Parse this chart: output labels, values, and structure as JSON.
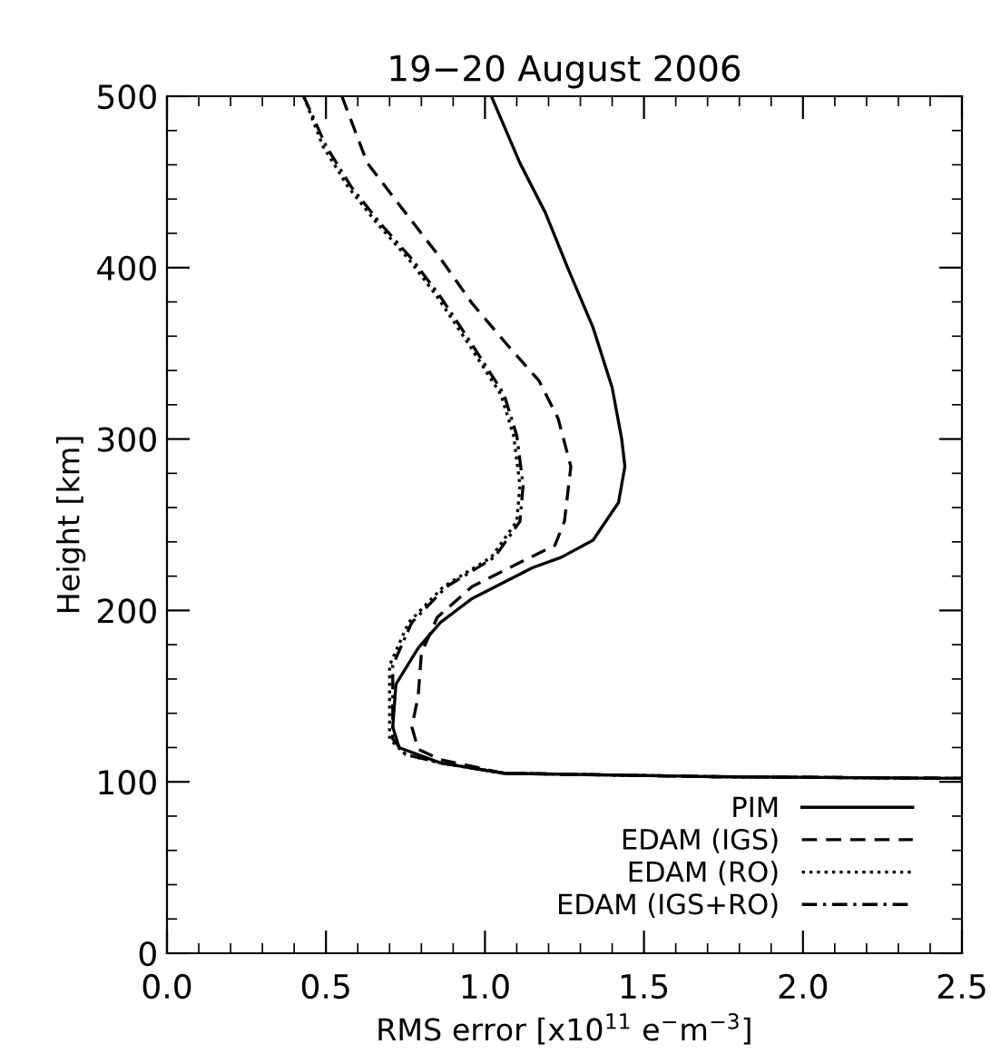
{
  "chart_data": {
    "type": "line",
    "title": "19−20 August 2006",
    "xlabel": "RMS error [x10$^{11}$ e$^{−}$m$^{−3}$]",
    "ylabel": "Height [km]",
    "xlim": [
      0.0,
      2.5
    ],
    "xticks": [
      {
        "value": 0,
        "label": "0.0"
      },
      0.5,
      {
        "value": 1,
        "label": "1.0"
      },
      1.5,
      {
        "value": 2,
        "label": "2.0"
      },
      2.5
    ],
    "ylim": [
      0,
      500
    ],
    "yticks": [
      0,
      100,
      200,
      300,
      400,
      500
    ],
    "grid": false,
    "legend": "bottom right",
    "marker": "none",
    "series": [
      {
        "name": "PIM",
        "color": "#000000",
        "line_style": "solid",
        "x": [
          1.02,
          1.11,
          1.19,
          1.26,
          1.34,
          1.4,
          1.43,
          1.44,
          1.42,
          1.34,
          1.24,
          1.15,
          0.96,
          0.86,
          0.79,
          0.72,
          0.71,
          0.73,
          0.86,
          1.06,
          1.72,
          2.5
        ],
        "values": [
          500,
          461,
          432,
          400,
          365,
          330,
          300,
          284,
          263,
          241,
          231,
          225,
          207,
          193,
          178,
          157,
          132,
          120,
          111,
          105,
          103,
          102
        ]
      },
      {
        "name": "EDAM (IGS)",
        "color": "#000000",
        "line_style": "dashed",
        "x": [
          0.55,
          0.63,
          0.75,
          0.85,
          0.96,
          1.07,
          1.17,
          1.23,
          1.27,
          1.25,
          1.22,
          1.11,
          0.96,
          0.85,
          0.8,
          0.79,
          0.77,
          0.79,
          0.86,
          1.06,
          1.72,
          2.5
        ],
        "values": [
          500,
          461,
          432,
          408,
          379,
          355,
          334,
          312,
          284,
          252,
          238,
          228,
          214,
          196,
          175,
          150,
          132,
          119,
          113,
          105,
          103,
          102
        ]
      },
      {
        "name": "EDAM (RO)",
        "color": "#000000",
        "line_style": "dotted",
        "x": [
          0.43,
          0.49,
          0.57,
          0.66,
          0.76,
          0.85,
          0.95,
          1.05,
          1.09,
          1.11,
          1.1,
          1.02,
          0.87,
          0.76,
          0.7,
          0.7,
          0.7,
          0.75,
          0.86,
          1.06,
          1.72,
          2.5
        ],
        "values": [
          500,
          471,
          447,
          426,
          405,
          383,
          355,
          326,
          302,
          273,
          252,
          231,
          214,
          193,
          168,
          146,
          125,
          116,
          111,
          105,
          103,
          102
        ]
      },
      {
        "name": "EDAM (IGS+RO)",
        "color": "#000000",
        "line_style": "dashdot",
        "x": [
          0.43,
          0.5,
          0.58,
          0.67,
          0.77,
          0.86,
          0.96,
          1.06,
          1.1,
          1.12,
          1.11,
          1.03,
          0.88,
          0.77,
          0.71,
          0.71,
          0.71,
          0.75,
          0.86,
          1.06,
          1.72,
          2.5
        ],
        "values": [
          500,
          471,
          447,
          426,
          405,
          383,
          355,
          326,
          302,
          273,
          252,
          231,
          214,
          193,
          168,
          146,
          125,
          116,
          111,
          105,
          103,
          102
        ]
      }
    ]
  }
}
